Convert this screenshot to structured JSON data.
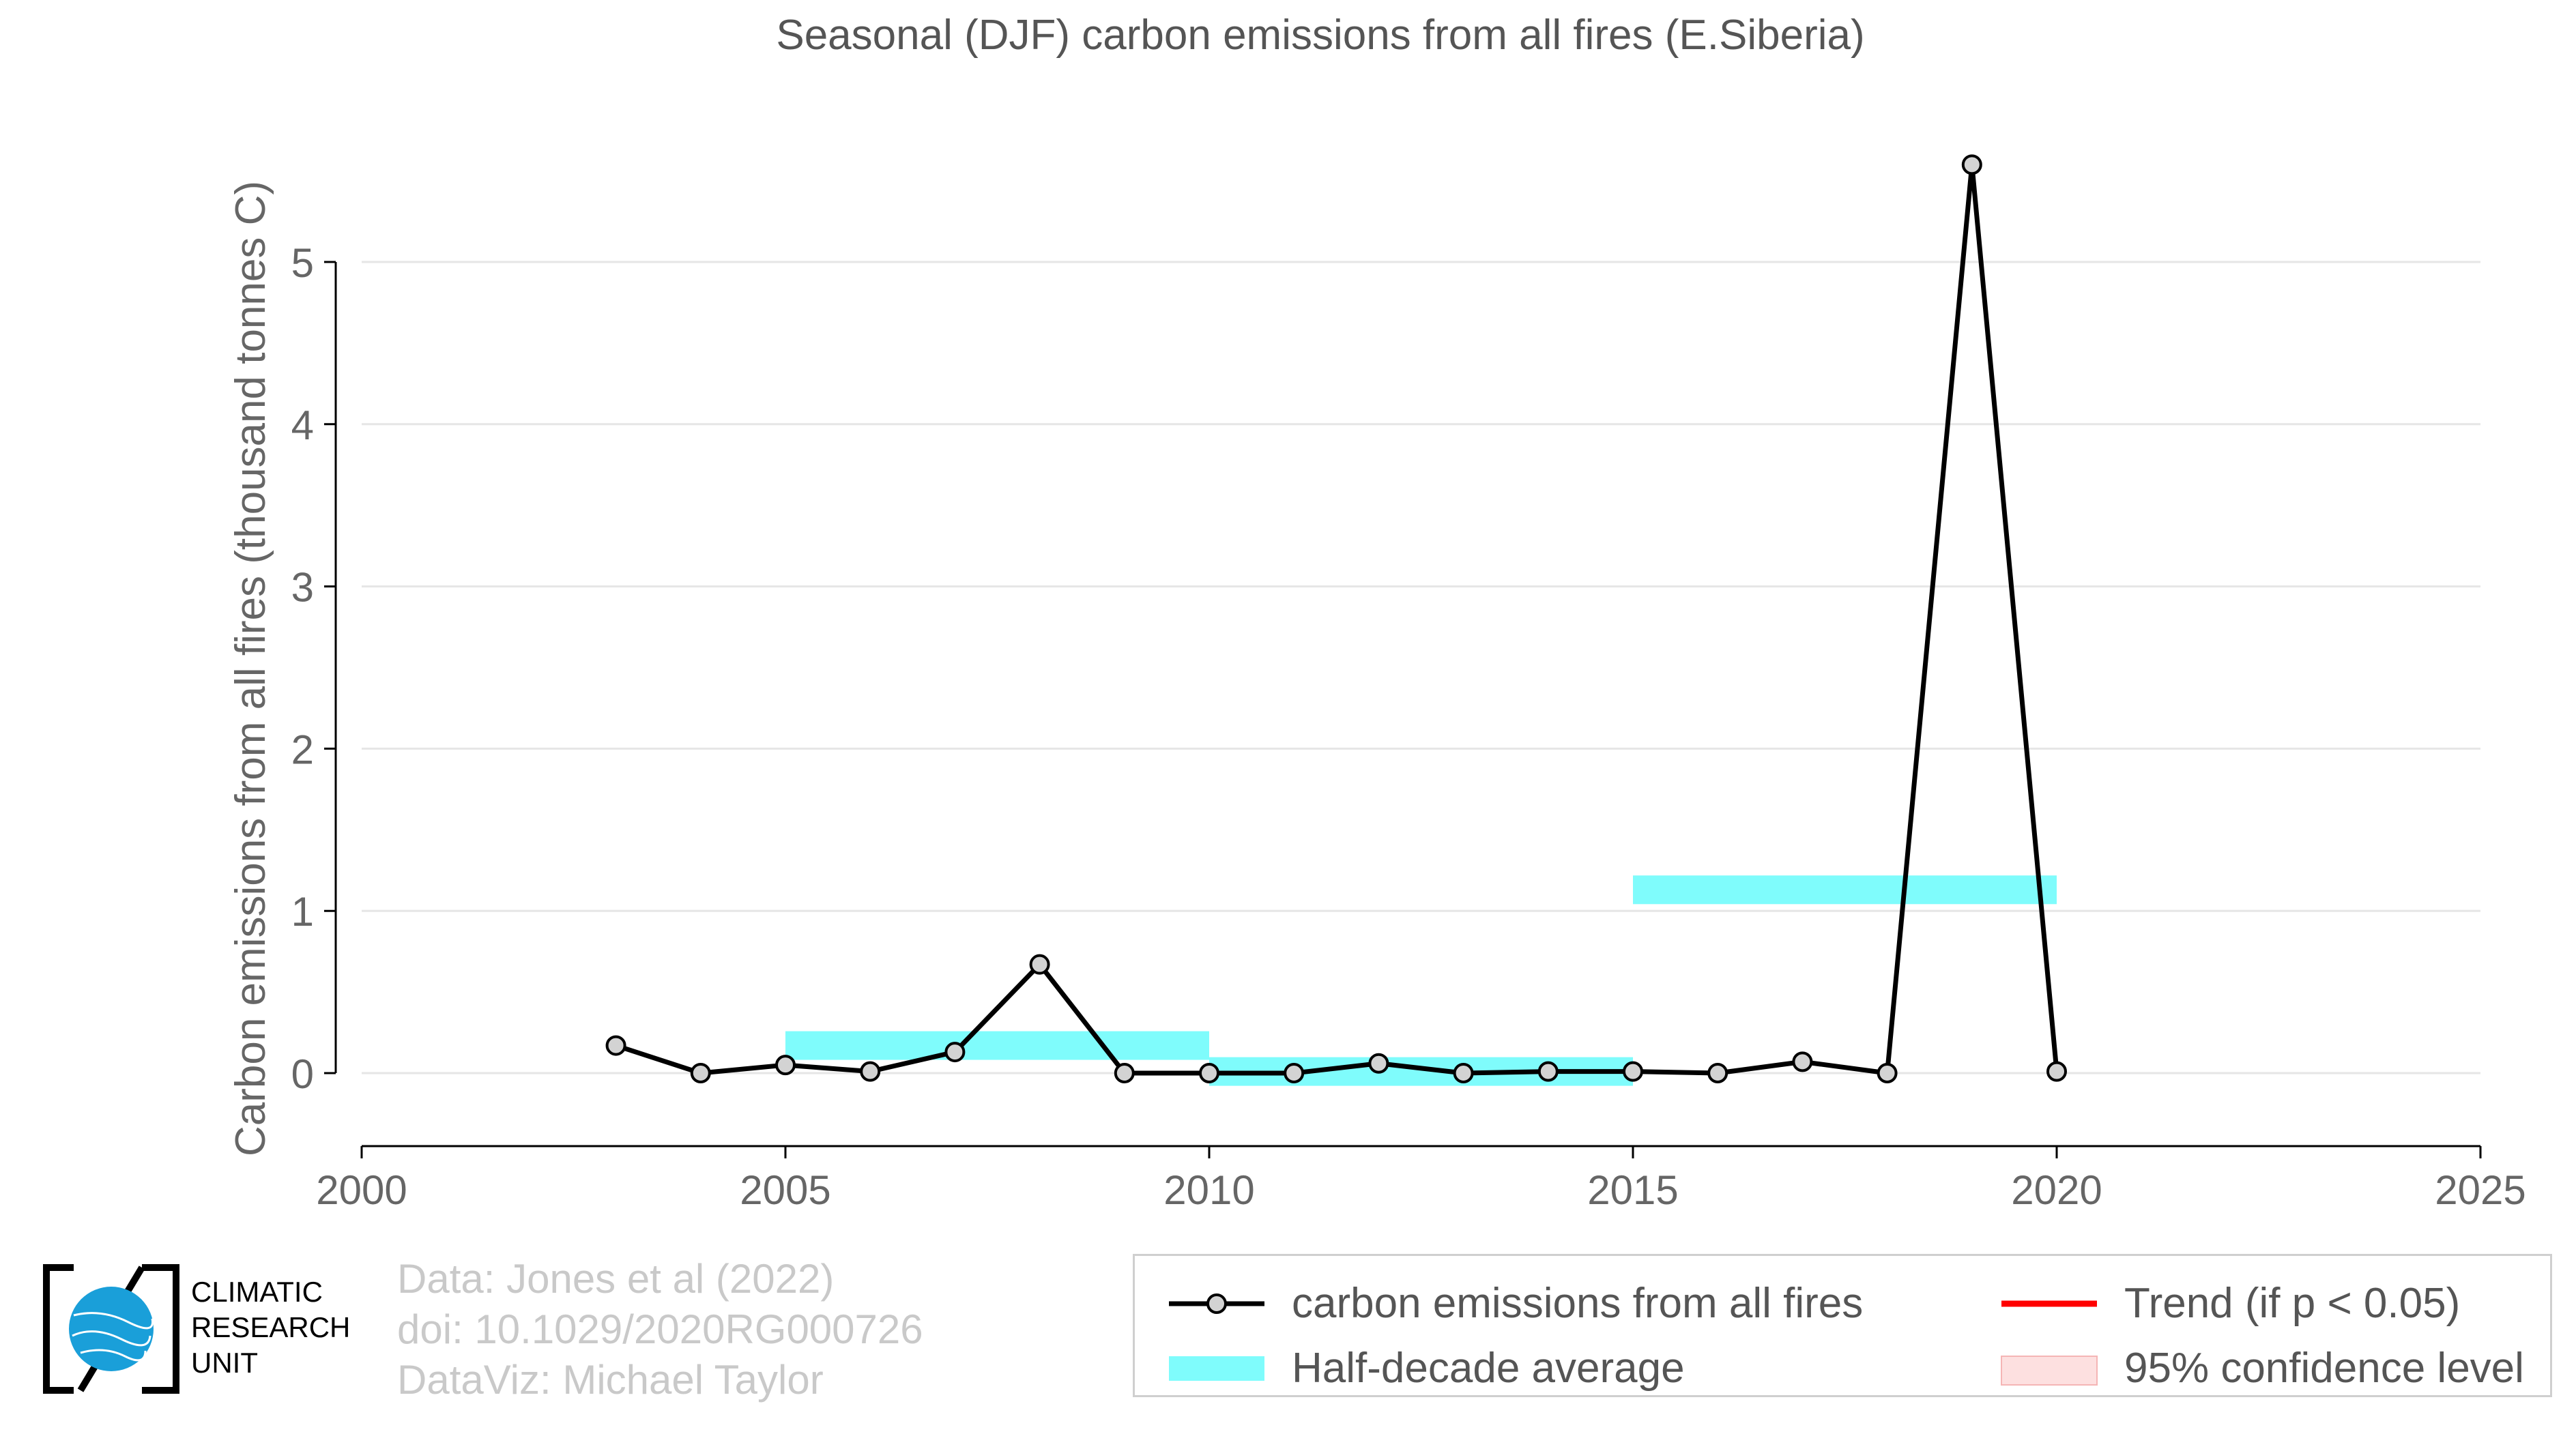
{
  "chart_data": {
    "type": "line",
    "title": "Seasonal (DJF) carbon emissions from all fires (E.Siberia)",
    "xlabel": "",
    "ylabel": "Carbon emissions from all fires (thousand tonnes C)",
    "xlim": [
      2000,
      2025
    ],
    "ylim": [
      -0.45,
      5.9
    ],
    "xticks": [
      2000,
      2005,
      2010,
      2015,
      2020,
      2025
    ],
    "yticks": [
      0,
      1,
      2,
      3,
      4,
      5
    ],
    "grid": true,
    "series": [
      {
        "name": "carbon emissions from all fires",
        "color": "#000000",
        "x": [
          2003,
          2004,
          2005,
          2006,
          2007,
          2008,
          2009,
          2010,
          2011,
          2012,
          2013,
          2014,
          2015,
          2016,
          2017,
          2018,
          2019,
          2020
        ],
        "y": [
          0.17,
          0.0,
          0.05,
          0.01,
          0.13,
          0.67,
          0.0,
          0.0,
          0.0,
          0.06,
          0.0,
          0.01,
          0.01,
          0.0,
          0.07,
          0.0,
          5.6,
          0.01
        ]
      }
    ],
    "half_decade_average": {
      "name": "Half-decade average",
      "color": "#7ffcfc",
      "periods": [
        {
          "x_start": 2005,
          "x_end": 2010,
          "value": 0.17
        },
        {
          "x_start": 2010,
          "x_end": 2015,
          "value": 0.01
        },
        {
          "x_start": 2015,
          "x_end": 2020,
          "value": 1.13
        }
      ]
    },
    "trend": {
      "name": "Trend (if p < 0.05)",
      "color": "#ff0000"
    },
    "confidence": {
      "name": "95% confidence level",
      "color": "#fde0e0"
    },
    "legend_position": "bottom-right"
  },
  "credits": {
    "line1": "Data: Jones et al (2022)",
    "line2": "doi: 10.1029/2020RG000726",
    "line3": "DataViz: Michael Taylor"
  },
  "logo": {
    "line1": "CLIMATIC",
    "line2": "RESEARCH",
    "line3": "UNIT",
    "color": "#1a9fd9"
  }
}
